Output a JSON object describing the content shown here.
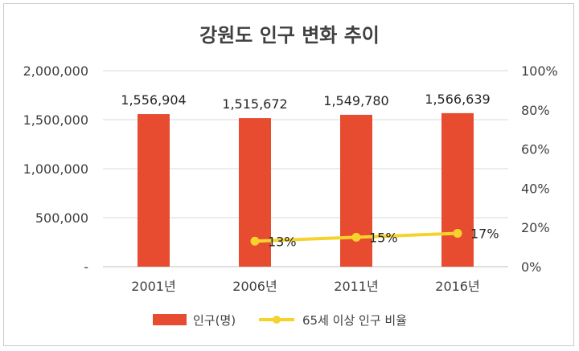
{
  "chart_data": {
    "type": "bar",
    "title": "강원도 인구 변화 추이",
    "categories": [
      "2001년",
      "2006년",
      "2011년",
      "2016년"
    ],
    "series": [
      {
        "name": "인구(명)",
        "type": "bar",
        "axis": "left",
        "color": "#e84c30",
        "values": [
          1556904,
          1515672,
          1549780,
          1566639
        ],
        "labels": [
          "1,556,904",
          "1,515,672",
          "1,549,780",
          "1,566,639"
        ]
      },
      {
        "name": "65세 이상 인구 비율",
        "type": "line",
        "axis": "right",
        "color": "#f6d32c",
        "values": [
          null,
          13,
          15,
          17
        ],
        "labels": [
          "",
          "13%",
          "15%",
          "17%"
        ]
      }
    ],
    "ylim": [
      0,
      2000000
    ],
    "y2lim": [
      0,
      100
    ],
    "y_ticks": [
      "-",
      "500,000",
      "1,000,000",
      "1,500,000",
      "2,000,000"
    ],
    "y2_ticks": [
      "0%",
      "20%",
      "40%",
      "60%",
      "80%",
      "100%"
    ],
    "grid": true,
    "legend_position": "bottom"
  }
}
